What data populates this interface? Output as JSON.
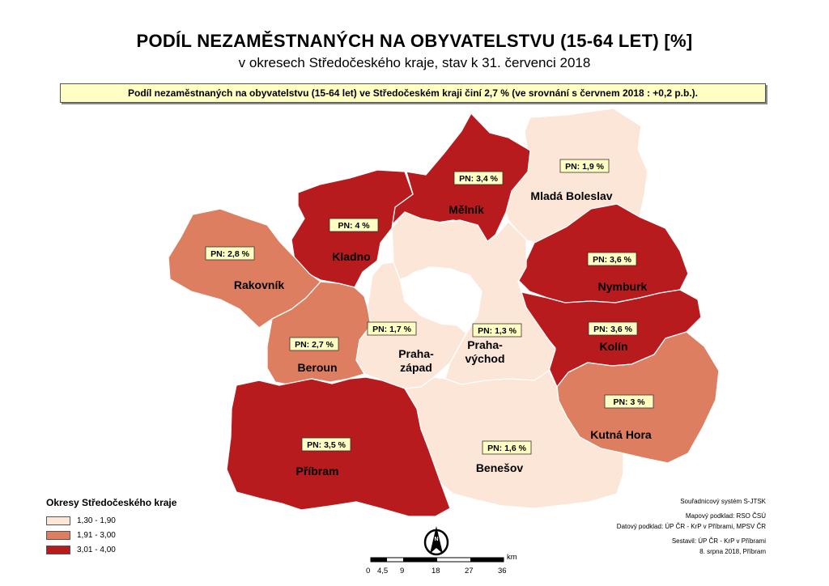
{
  "title": "PODÍL NEZAMĚSTNANÝCH NA OBYVATELSTVU (15-64 LET) [%]",
  "subtitle": "v okresech Středočeského kraje, stav k 31. červenci 2018",
  "summary": "Podíl nezaměstnaných na obyvatelstvu (15-64 let) ve Středočeském kraji činí 2,7 % (ve srovnání s červnem 2018 : +0,2 p.b.).",
  "colors": {
    "class1": "#fbe6d8",
    "class2": "#dd7e60",
    "class3": "#b81b1e",
    "outline": "#ffffff",
    "label_box": "#ffffc4"
  },
  "districts": [
    {
      "id": "mlada-boleslav",
      "name": "Mladá Boleslav",
      "label": "PN: 1,9 %",
      "value": 1.9,
      "class": 1
    },
    {
      "id": "melnik",
      "name": "Mělník",
      "label": "PN: 3,4 %",
      "value": 3.4,
      "class": 3
    },
    {
      "id": "kladno",
      "name": "Kladno",
      "label": "PN: 4 %",
      "value": 4.0,
      "class": 3
    },
    {
      "id": "rakovnik",
      "name": "Rakovník",
      "label": "PN: 2,8 %",
      "value": 2.8,
      "class": 2
    },
    {
      "id": "nymburk",
      "name": "Nymburk",
      "label": "PN: 3,6 %",
      "value": 3.6,
      "class": 3
    },
    {
      "id": "kolin",
      "name": "Kolín",
      "label": "PN: 3,6 %",
      "value": 3.6,
      "class": 3
    },
    {
      "id": "praha-zapad",
      "name": "Praha-\nzápad",
      "label": "PN: 1,7 %",
      "value": 1.7,
      "class": 1
    },
    {
      "id": "praha-vychod",
      "name": "Praha-\nvýchod",
      "label": "PN: 1,3 %",
      "value": 1.3,
      "class": 1
    },
    {
      "id": "beroun",
      "name": "Beroun",
      "label": "PN: 2,7 %",
      "value": 2.7,
      "class": 2
    },
    {
      "id": "kutna-hora",
      "name": "Kutná Hora",
      "label": "PN: 3 %",
      "value": 3.0,
      "class": 2
    },
    {
      "id": "pribram",
      "name": "Příbram",
      "label": "PN: 3,5 %",
      "value": 3.5,
      "class": 3
    },
    {
      "id": "benesov",
      "name": "Benešov",
      "label": "PN: 1,6 %",
      "value": 1.6,
      "class": 1
    }
  ],
  "legend": {
    "title": "Okresy Středočeského kraje",
    "items": [
      {
        "label": "1,30 - 1,90",
        "class": 1
      },
      {
        "label": "1,91 - 3,00",
        "class": 2
      },
      {
        "label": "3,01 - 4,00",
        "class": 3
      }
    ]
  },
  "credits": {
    "line1": "Souřadnicový systém S-JTSK",
    "line2": "Mapový podklad:  RSO ČSÚ",
    "line3": "Datový podklad: ÚP ČR - KrP v Příbrami, MPSV ČR",
    "line4": "Sestavil: ÚP ČR - KrP v Příbrami",
    "line5": "8. srpna 2018, Příbram"
  },
  "north_arrow_letter": "N",
  "scale": {
    "unit": "km",
    "ticks": [
      "0",
      "4,5",
      "9",
      "18",
      "27",
      "36"
    ]
  }
}
